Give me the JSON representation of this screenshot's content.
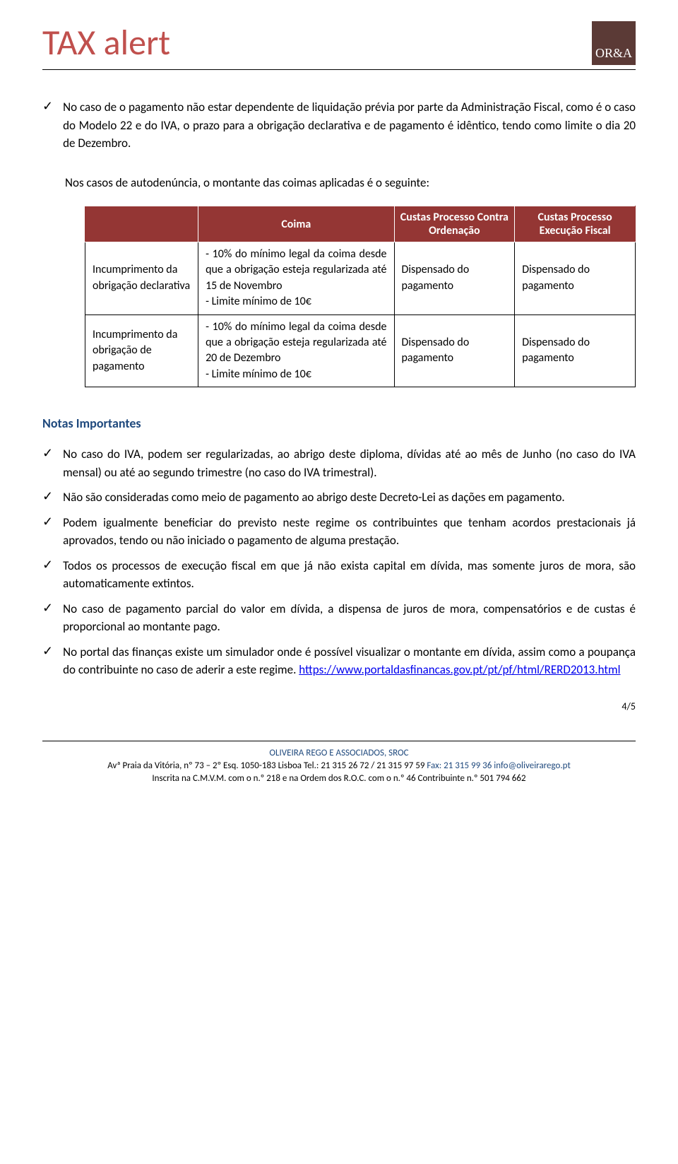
{
  "header": {
    "title": "TAX alert",
    "logo_text": "OR&A"
  },
  "intro": {
    "text1": "No caso de o pagamento não estar dependente de liquidação prévia por parte da Administração Fiscal, como é o caso do Modelo 22 e do IVA, o prazo para a obrigação declarativa e de pagamento é idêntico, tendo como limite o dia 20 de Dezembro.",
    "text2": "Nos casos de autodenúncia, o montante das coimas aplicadas é o seguinte:"
  },
  "table": {
    "headers": {
      "col1": "",
      "col2": "Coima",
      "col3": "Custas Processo Contra Ordenação",
      "col4": "Custas Processo Execução Fiscal"
    },
    "rows": [
      {
        "label": "Incumprimento da obrigação declarativa",
        "coima": "- 10% do mínimo legal da coima desde que a obrigação esteja regularizada até 15 de Novembro\n- Limite mínimo de 10€",
        "custas_co": "Dispensado do pagamento",
        "custas_ef": "Dispensado do pagamento"
      },
      {
        "label": "Incumprimento da obrigação de pagamento",
        "coima": "- 10% do mínimo legal da coima desde que a obrigação esteja regularizada até 20 de Dezembro\n- Limite mínimo de 10€",
        "custas_co": "Dispensado do pagamento",
        "custas_ef": "Dispensado do pagamento"
      }
    ]
  },
  "notes_heading": "Notas Importantes",
  "notes": [
    "No caso do IVA, podem ser regularizadas, ao abrigo deste diploma, dívidas até ao mês de Junho (no caso do IVA mensal) ou até ao segundo trimestre (no caso do IVA trimestral).",
    "Não são consideradas como meio de pagamento ao abrigo deste Decreto-Lei as dações em pagamento.",
    "Podem igualmente beneficiar do previsto neste regime os contribuintes que tenham acordos prestacionais já aprovados, tendo ou não iniciado o pagamento de alguma prestação.",
    "Todos os processos de execução fiscal em que já não exista capital em dívida, mas somente juros de mora, são automaticamente extintos.",
    "No caso de pagamento parcial do valor em dívida, a dispensa de juros de mora, compensatórios e de custas é proporcional ao montante pago."
  ],
  "note_with_link": {
    "text": "No portal das finanças existe um simulador onde é possível visualizar o montante em dívida, assim como a poupança do contribuinte no caso de aderir a este regime. ",
    "link": "https://www.portaldasfinancas.gov.pt/pt/pf/html/RERD2013.html"
  },
  "page_number": "4/5",
  "footer": {
    "company": "OLIVEIRA REGO E ASSOCIADOS, SROC",
    "addr_pre": "Avª Praia da Vitória, nº 73 – 2º Esq. 1050-183 Lisboa Tel.:",
    "tel": " 21 315 26 72 / 21 315 97 59    ",
    "fax_label": "Fax: ",
    "fax": "21 315 99 36",
    "email": " info@oliveirarego.pt",
    "line3": "Inscrita na C.M.V.M. com o n.º 218 e na Ordem dos R.O.C. com o n.º 46 Contribuinte n.º 501 794 662"
  },
  "colors": {
    "title_color": "#c0504d",
    "logo_bg": "#5b3a36",
    "table_header_bg": "#943634",
    "section_color": "#1f497d",
    "link_color": "#0000ee"
  }
}
